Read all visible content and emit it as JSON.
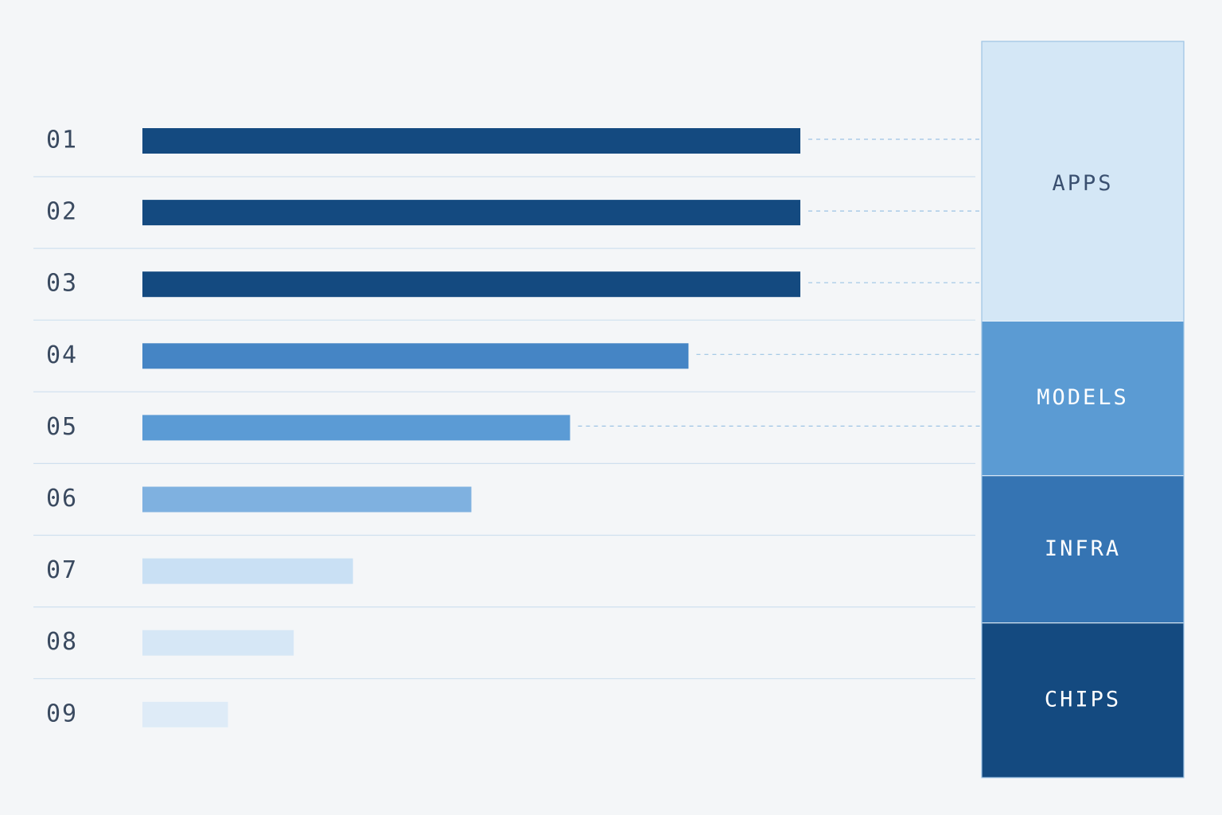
{
  "chart_data": [
    {
      "type": "bar",
      "categories": [
        "01",
        "02",
        "03",
        "04",
        "05",
        "06",
        "07",
        "08",
        "09"
      ],
      "values": [
        100,
        100,
        100,
        83,
        65,
        50,
        32,
        23,
        13
      ],
      "colors": [
        "#144a80",
        "#144a80",
        "#144a80",
        "#4585c5",
        "#5b9bd5",
        "#7fb1e0",
        "#c9e0f4",
        "#d6e7f6",
        "#deebf7"
      ]
    },
    {
      "type": "stack",
      "categories": [
        "APPS",
        "MODELS",
        "INFRA",
        "CHIPS"
      ],
      "values": [
        38,
        21,
        20,
        21
      ],
      "colors": [
        "#d4e7f6",
        "#5b9bd3",
        "#3574b3",
        "#144a80"
      ],
      "label_colors": [
        "#3a5070",
        "#ffffff",
        "#ffffff",
        "#ffffff"
      ]
    }
  ]
}
